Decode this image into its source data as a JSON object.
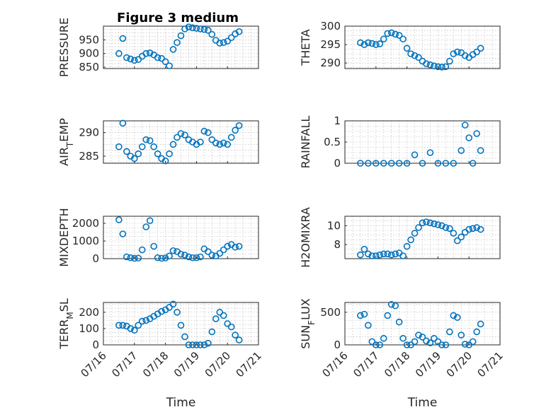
{
  "figure": {
    "title": "Figure 3 medium",
    "marker_color": "#0072BD"
  },
  "chart_data": [
    {
      "type": "scatter",
      "ylabel": "PRESSURE",
      "xlabel": "",
      "xlim": [
        "2020-07-16",
        "2020-07-21"
      ],
      "ylim": [
        845,
        1000
      ],
      "yticks": [
        850,
        900,
        950
      ],
      "xtick_labels_shown": false,
      "grid": true,
      "x": [
        "07/16 12:00",
        "07/16 15:00",
        "07/16 18:00",
        "07/16 21:00",
        "07/17 00:00",
        "07/17 03:00",
        "07/17 06:00",
        "07/17 09:00",
        "07/17 12:00",
        "07/17 15:00",
        "07/17 18:00",
        "07/17 21:00",
        "07/18 00:00",
        "07/18 03:00",
        "07/18 06:00",
        "07/18 09:00",
        "07/18 12:00",
        "07/18 15:00",
        "07/18 18:00",
        "07/18 21:00",
        "07/19 00:00",
        "07/19 03:00",
        "07/19 06:00",
        "07/19 09:00",
        "07/19 12:00",
        "07/19 15:00",
        "07/19 18:00",
        "07/19 21:00",
        "07/20 00:00",
        "07/20 03:00",
        "07/20 06:00",
        "07/20 09:00"
      ],
      "y": [
        900,
        955,
        885,
        880,
        875,
        878,
        890,
        900,
        902,
        895,
        885,
        882,
        870,
        855,
        915,
        940,
        965,
        990,
        997,
        994,
        992,
        990,
        988,
        985,
        970,
        948,
        938,
        940,
        945,
        958,
        972,
        980
      ]
    },
    {
      "type": "scatter",
      "ylabel": "THETA",
      "xlabel": "",
      "xlim": [
        "2020-07-16",
        "2020-07-21"
      ],
      "ylim": [
        288.5,
        300
      ],
      "yticks": [
        290,
        295,
        300
      ],
      "xtick_labels_shown": false,
      "grid": true,
      "x": [
        "07/16 12:00",
        "07/16 15:00",
        "07/16 18:00",
        "07/16 21:00",
        "07/17 00:00",
        "07/17 03:00",
        "07/17 06:00",
        "07/17 09:00",
        "07/17 12:00",
        "07/17 15:00",
        "07/17 18:00",
        "07/17 21:00",
        "07/18 00:00",
        "07/18 03:00",
        "07/18 06:00",
        "07/18 09:00",
        "07/18 12:00",
        "07/18 15:00",
        "07/18 18:00",
        "07/18 21:00",
        "07/19 00:00",
        "07/19 03:00",
        "07/19 06:00",
        "07/19 09:00",
        "07/19 12:00",
        "07/19 15:00",
        "07/19 18:00",
        "07/19 21:00",
        "07/20 00:00",
        "07/20 03:00",
        "07/20 06:00",
        "07/20 09:00"
      ],
      "y": [
        295.5,
        295,
        295.5,
        295.3,
        295,
        295.2,
        296.5,
        298,
        298.2,
        297.8,
        297.5,
        296.5,
        294,
        292.5,
        292,
        291.5,
        290.5,
        289.8,
        289.5,
        289.2,
        289,
        288.9,
        289,
        290.5,
        292.5,
        293,
        292.8,
        292,
        291.5,
        292.3,
        293,
        294
      ]
    },
    {
      "type": "scatter",
      "ylabel": "AIR_TEMP",
      "xlabel": "",
      "xlim": [
        "2020-07-16",
        "2020-07-21"
      ],
      "ylim": [
        283.5,
        292.5
      ],
      "yticks": [
        285,
        290
      ],
      "xtick_labels_shown": false,
      "grid": true,
      "x": [
        "07/16 12:00",
        "07/16 15:00",
        "07/16 18:00",
        "07/16 21:00",
        "07/17 00:00",
        "07/17 03:00",
        "07/17 06:00",
        "07/17 09:00",
        "07/17 12:00",
        "07/17 15:00",
        "07/17 18:00",
        "07/17 21:00",
        "07/18 00:00",
        "07/18 03:00",
        "07/18 06:00",
        "07/18 09:00",
        "07/18 12:00",
        "07/18 15:00",
        "07/18 18:00",
        "07/18 21:00",
        "07/19 00:00",
        "07/19 03:00",
        "07/19 06:00",
        "07/19 09:00",
        "07/19 12:00",
        "07/19 15:00",
        "07/19 18:00",
        "07/19 21:00",
        "07/20 00:00",
        "07/20 03:00",
        "07/20 06:00",
        "07/20 09:00"
      ],
      "y": [
        287,
        292,
        286,
        285,
        284.5,
        285.5,
        287,
        288.5,
        288.3,
        287,
        285.5,
        284.5,
        284,
        285.5,
        287.5,
        289,
        289.8,
        289.5,
        288.5,
        288,
        287.5,
        288,
        290.3,
        290,
        288.5,
        287.8,
        287.5,
        287.8,
        287.5,
        289,
        290.5,
        291.5
      ]
    },
    {
      "type": "scatter",
      "ylabel": "RAINFALL",
      "xlabel": "",
      "xlim": [
        "2020-07-16",
        "2020-07-21"
      ],
      "ylim": [
        0,
        1
      ],
      "yticks": [
        0,
        0.5,
        1
      ],
      "xtick_labels_shown": false,
      "grid": true,
      "x": [
        "07/16 12:00",
        "07/16 18:00",
        "07/17 00:00",
        "07/17 06:00",
        "07/17 12:00",
        "07/17 18:00",
        "07/18 00:00",
        "07/18 06:00",
        "07/18 12:00",
        "07/18 18:00",
        "07/19 00:00",
        "07/19 06:00",
        "07/19 12:00",
        "07/19 18:00",
        "07/19 21:00",
        "07/20 00:00",
        "07/20 03:00",
        "07/20 06:00",
        "07/20 09:00"
      ],
      "y": [
        0,
        0,
        0,
        0,
        0,
        0,
        0,
        0.2,
        0,
        0.25,
        0,
        0,
        0,
        0.3,
        0.9,
        0.6,
        0,
        0.7,
        0.3
      ]
    },
    {
      "type": "scatter",
      "ylabel": "MIXDEPTH",
      "xlabel": "",
      "xlim": [
        "2020-07-16",
        "2020-07-21"
      ],
      "ylim": [
        0,
        2400
      ],
      "yticks": [
        0,
        1000,
        2000
      ],
      "xtick_labels_shown": false,
      "grid": true,
      "x": [
        "07/16 12:00",
        "07/16 15:00",
        "07/16 18:00",
        "07/16 21:00",
        "07/17 00:00",
        "07/17 03:00",
        "07/17 06:00",
        "07/17 09:00",
        "07/17 12:00",
        "07/17 15:00",
        "07/17 18:00",
        "07/17 21:00",
        "07/18 00:00",
        "07/18 03:00",
        "07/18 06:00",
        "07/18 09:00",
        "07/18 12:00",
        "07/18 15:00",
        "07/18 18:00",
        "07/18 21:00",
        "07/19 00:00",
        "07/19 03:00",
        "07/19 06:00",
        "07/19 09:00",
        "07/19 12:00",
        "07/19 15:00",
        "07/19 18:00",
        "07/19 21:00",
        "07/20 00:00",
        "07/20 03:00",
        "07/20 06:00",
        "07/20 09:00"
      ],
      "y": [
        2200,
        1400,
        100,
        50,
        20,
        30,
        500,
        1800,
        2150,
        700,
        50,
        20,
        40,
        150,
        450,
        400,
        250,
        200,
        100,
        50,
        50,
        100,
        550,
        400,
        200,
        150,
        300,
        500,
        700,
        800,
        650,
        700
      ]
    },
    {
      "type": "scatter",
      "ylabel": "H2OMIXRA",
      "xlabel": "",
      "xlim": [
        "2020-07-16",
        "2020-07-21"
      ],
      "ylim": [
        6.5,
        11
      ],
      "yticks": [
        8,
        10
      ],
      "xtick_labels_shown": false,
      "grid": true,
      "x": [
        "07/16 12:00",
        "07/16 15:00",
        "07/16 18:00",
        "07/16 21:00",
        "07/17 00:00",
        "07/17 03:00",
        "07/17 06:00",
        "07/17 09:00",
        "07/17 12:00",
        "07/17 15:00",
        "07/17 18:00",
        "07/17 21:00",
        "07/18 00:00",
        "07/18 03:00",
        "07/18 06:00",
        "07/18 09:00",
        "07/18 12:00",
        "07/18 15:00",
        "07/18 18:00",
        "07/18 21:00",
        "07/19 00:00",
        "07/19 03:00",
        "07/19 06:00",
        "07/19 09:00",
        "07/19 12:00",
        "07/19 15:00",
        "07/19 18:00",
        "07/19 21:00",
        "07/20 00:00",
        "07/20 03:00",
        "07/20 06:00",
        "07/20 09:00"
      ],
      "y": [
        6.9,
        7.5,
        7,
        6.8,
        6.8,
        6.9,
        7,
        7,
        6.9,
        7,
        7.1,
        6.8,
        7.8,
        8.5,
        9.2,
        9.8,
        10.3,
        10.4,
        10.3,
        10.2,
        10.1,
        10,
        9.8,
        9.7,
        9.2,
        8.4,
        8.8,
        9.3,
        9.6,
        9.7,
        9.8,
        9.6
      ]
    },
    {
      "type": "scatter",
      "ylabel": "TERR_MSL",
      "xlabel": "Time",
      "xlim": [
        "2020-07-16",
        "2020-07-21"
      ],
      "ylim": [
        0,
        260
      ],
      "yticks": [
        0,
        100,
        200
      ],
      "xticks": [
        "07/16",
        "07/17",
        "07/18",
        "07/19",
        "07/20",
        "07/21"
      ],
      "grid": true,
      "x": [
        "07/16 12:00",
        "07/16 15:00",
        "07/16 18:00",
        "07/16 21:00",
        "07/17 00:00",
        "07/17 03:00",
        "07/17 06:00",
        "07/17 09:00",
        "07/17 12:00",
        "07/17 15:00",
        "07/17 18:00",
        "07/17 21:00",
        "07/18 00:00",
        "07/18 03:00",
        "07/18 06:00",
        "07/18 09:00",
        "07/18 12:00",
        "07/18 15:00",
        "07/18 18:00",
        "07/18 21:00",
        "07/19 00:00",
        "07/19 03:00",
        "07/19 06:00",
        "07/19 09:00",
        "07/19 12:00",
        "07/19 15:00",
        "07/19 18:00",
        "07/19 21:00",
        "07/20 00:00",
        "07/20 03:00",
        "07/20 06:00",
        "07/20 09:00"
      ],
      "y": [
        120,
        120,
        115,
        100,
        90,
        120,
        145,
        150,
        160,
        175,
        190,
        205,
        215,
        230,
        250,
        200,
        120,
        50,
        0,
        0,
        0,
        0,
        0,
        10,
        80,
        160,
        200,
        180,
        130,
        110,
        60,
        30
      ]
    },
    {
      "type": "scatter",
      "ylabel": "SUN_FLUX",
      "xlabel": "Time",
      "xlim": [
        "2020-07-16",
        "2020-07-21"
      ],
      "ylim": [
        0,
        650
      ],
      "yticks": [
        0,
        500
      ],
      "xticks": [
        "07/16",
        "07/17",
        "07/18",
        "07/19",
        "07/20",
        "07/21"
      ],
      "grid": true,
      "x": [
        "07/16 12:00",
        "07/16 15:00",
        "07/16 18:00",
        "07/16 21:00",
        "07/17 00:00",
        "07/17 03:00",
        "07/17 06:00",
        "07/17 09:00",
        "07/17 12:00",
        "07/17 15:00",
        "07/17 18:00",
        "07/17 21:00",
        "07/18 00:00",
        "07/18 03:00",
        "07/18 06:00",
        "07/18 09:00",
        "07/18 12:00",
        "07/18 15:00",
        "07/18 18:00",
        "07/18 21:00",
        "07/19 00:00",
        "07/19 03:00",
        "07/19 06:00",
        "07/19 09:00",
        "07/19 12:00",
        "07/19 15:00",
        "07/19 18:00",
        "07/19 21:00",
        "07/20 00:00",
        "07/20 03:00",
        "07/20 06:00",
        "07/20 09:00"
      ],
      "y": [
        450,
        470,
        300,
        50,
        0,
        0,
        100,
        450,
        620,
        600,
        350,
        100,
        0,
        0,
        50,
        150,
        120,
        60,
        30,
        100,
        50,
        0,
        0,
        200,
        450,
        420,
        150,
        10,
        0,
        50,
        200,
        320
      ]
    }
  ]
}
